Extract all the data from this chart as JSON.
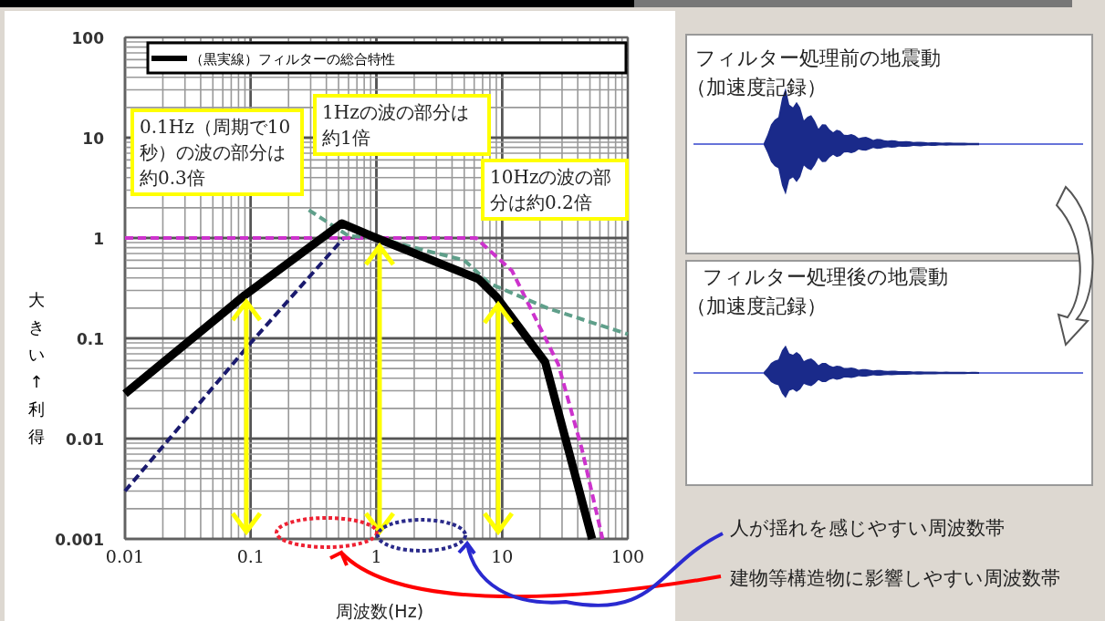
{
  "chart_data": {
    "type": "line",
    "xlabel": "周波数(Hz)",
    "ylabel": "大きい↑利得",
    "log": "xy",
    "grid": true,
    "legend": "top",
    "marker": "none",
    "xlim": [
      0.01,
      100
    ],
    "ylim": [
      0.001,
      100
    ],
    "xticks": [
      0.01,
      0.1,
      1,
      10,
      100
    ],
    "yticks": [
      0.001,
      0.01,
      0.1,
      1,
      10,
      100
    ],
    "series": [
      {
        "color": "#1a1a6e",
        "line_style": "dashed",
        "x": [
          0.01,
          0.1,
          0.55
        ],
        "values": [
          0.003,
          0.09,
          1
        ]
      },
      {
        "color": "#cc33cc",
        "line_style": "dashed",
        "x": [
          0.01,
          6.2,
          12,
          28,
          43,
          63
        ],
        "values": [
          1,
          1,
          0.47,
          0.055,
          0.008,
          0.001
        ]
      },
      {
        "color": "#5f9f8a",
        "line_style": "dashed",
        "x": [
          0.29,
          0.6,
          1,
          5,
          8,
          23,
          100
        ],
        "values": [
          1.9,
          1.05,
          1,
          0.6,
          0.35,
          0.2,
          0.11
        ]
      },
      {
        "name": "（黒実線）フィルターの総合特性",
        "color": "#000000",
        "line_style": "solid",
        "x": [
          0.01,
          0.09,
          0.53,
          1,
          6.5,
          9,
          22,
          52
        ],
        "values": [
          0.028,
          0.27,
          1.4,
          1,
          0.39,
          0.26,
          0.058,
          0.001
        ]
      }
    ],
    "annotations": [
      "0.1Hz（周期で10秒）の波の部分は約0.3倍",
      "1Hzの波の部分は約1倍",
      "10Hzの波の部分は約0.2倍",
      "フィルター処理前の地震動",
      "（加速度記録）",
      "フィルター処理後の地震動",
      "（加速度記録）",
      "人が揺れを感じやすい周波数帯",
      "建物等構造物に影響しやすい周波数帯"
    ]
  }
}
